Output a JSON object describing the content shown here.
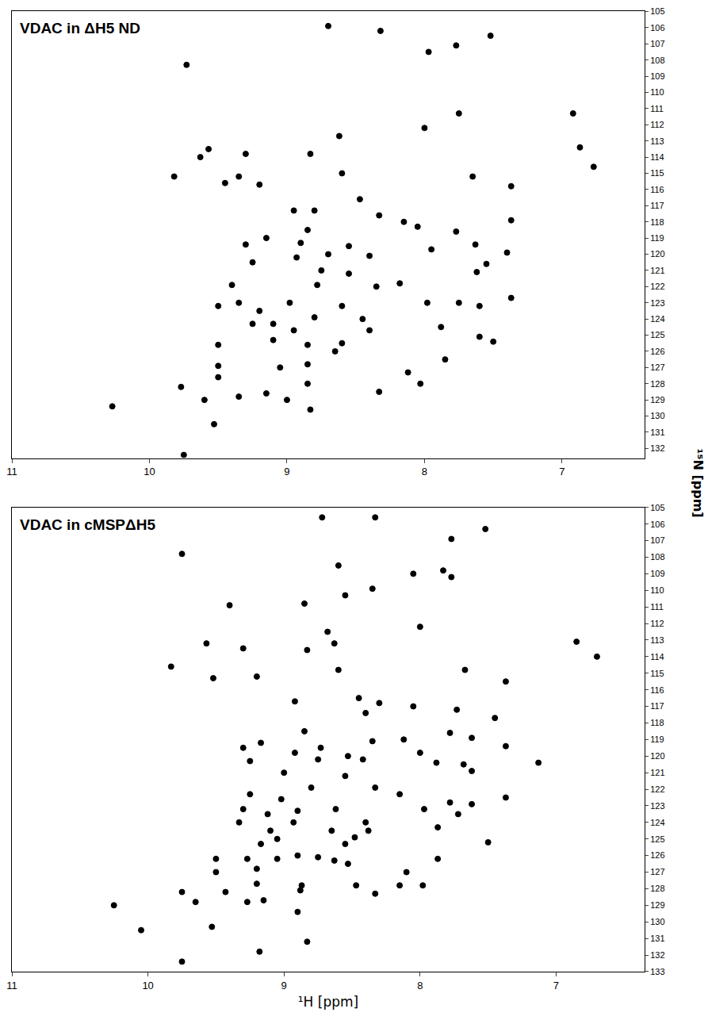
{
  "chart_data": [
    {
      "type": "scatter",
      "title": "VDAC in ΔH5 ND",
      "color": "#000000",
      "marker": "circle",
      "xlim": [
        11,
        6.4
      ],
      "xticks": [
        11,
        10,
        9,
        8,
        7
      ],
      "ylim": [
        105,
        132.6
      ],
      "yticks": [
        105,
        106,
        107,
        108,
        109,
        110,
        111,
        112,
        113,
        114,
        115,
        116,
        117,
        118,
        119,
        120,
        121,
        122,
        123,
        124,
        125,
        126,
        127,
        128,
        129,
        130,
        131,
        132
      ],
      "x": [
        8.7,
        8.32,
        7.52,
        7.77,
        9.73,
        7.97,
        9.57,
        9.63,
        9.3,
        8.83,
        8.62,
        9.45,
        9.2,
        8.6,
        7.65,
        7.37,
        9.82,
        9.35,
        6.77,
        6.87,
        6.92,
        7.75,
        8.0,
        8.95,
        8.8,
        8.47,
        8.33,
        8.15,
        8.05,
        7.77,
        7.37,
        9.15,
        8.85,
        8.9,
        9.3,
        8.93,
        8.7,
        8.55,
        8.4,
        7.95,
        7.63,
        7.55,
        7.62,
        7.4,
        9.25,
        8.75,
        8.55,
        8.78,
        8.35,
        8.18,
        7.98,
        7.75,
        7.6,
        7.37,
        8.98,
        9.2,
        9.25,
        9.1,
        8.95,
        8.8,
        8.6,
        8.45,
        8.4,
        9.1,
        8.85,
        8.6,
        7.88,
        7.6,
        7.5,
        9.5,
        9.5,
        9.5,
        9.5,
        9.05,
        8.85,
        8.65,
        7.85,
        8.12,
        8.03,
        8.33,
        9.15,
        8.85,
        9.0,
        9.77,
        9.6,
        9.35,
        10.27,
        9.53,
        8.83,
        9.75,
        9.4,
        9.35
      ],
      "y": [
        105.9,
        106.2,
        106.5,
        107.1,
        108.3,
        107.5,
        113.5,
        114.0,
        113.8,
        113.8,
        112.7,
        115.6,
        115.7,
        115.0,
        115.2,
        115.8,
        115.2,
        115.2,
        114.6,
        113.4,
        111.3,
        111.3,
        112.2,
        117.3,
        117.3,
        116.6,
        117.6,
        118.0,
        118.3,
        118.6,
        117.9,
        119.0,
        118.5,
        119.3,
        119.4,
        120.2,
        120.0,
        119.5,
        120.1,
        119.7,
        119.4,
        120.6,
        121.1,
        119.9,
        120.5,
        121.0,
        121.2,
        121.9,
        122.0,
        121.8,
        123.0,
        123.0,
        123.2,
        122.7,
        123.0,
        123.5,
        124.3,
        124.3,
        124.7,
        123.9,
        123.2,
        124.0,
        124.7,
        125.3,
        125.6,
        125.5,
        124.5,
        125.1,
        125.4,
        123.2,
        125.6,
        126.9,
        127.6,
        127.0,
        126.8,
        126.0,
        126.5,
        127.3,
        128.0,
        128.5,
        128.6,
        128.0,
        129.0,
        128.2,
        129.0,
        128.8,
        129.4,
        130.5,
        129.6,
        132.4,
        121.9,
        123.0
      ]
    },
    {
      "type": "scatter",
      "title": "VDAC in cMSPΔH5",
      "color": "#000000",
      "marker": "circle",
      "xlabel": "¹H [ppm]",
      "ylabel": "¹⁵N [ppm]",
      "xlim": [
        11,
        6.35
      ],
      "xticks": [
        11,
        10,
        9,
        8,
        7
      ],
      "ylim": [
        105,
        133
      ],
      "yticks": [
        105,
        106,
        107,
        108,
        109,
        110,
        111,
        112,
        113,
        114,
        115,
        116,
        117,
        118,
        119,
        120,
        121,
        122,
        123,
        124,
        125,
        126,
        127,
        128,
        129,
        130,
        131,
        132,
        133
      ],
      "x": [
        8.72,
        8.33,
        7.52,
        7.77,
        9.75,
        8.6,
        7.83,
        7.77,
        8.05,
        8.35,
        8.55,
        8.85,
        9.4,
        8.0,
        8.68,
        9.57,
        9.3,
        8.83,
        8.63,
        9.83,
        9.52,
        9.2,
        8.6,
        7.67,
        7.37,
        6.85,
        6.7,
        8.92,
        8.45,
        8.3,
        8.05,
        7.73,
        7.45,
        8.4,
        8.85,
        9.3,
        9.17,
        8.73,
        8.35,
        8.12,
        8.0,
        7.78,
        7.62,
        7.37,
        9.25,
        8.92,
        8.75,
        8.53,
        8.42,
        7.88,
        7.68,
        7.62,
        9.0,
        8.55,
        8.8,
        8.33,
        8.15,
        9.25,
        9.02,
        7.78,
        7.62,
        7.37,
        7.97,
        9.3,
        9.12,
        8.9,
        8.62,
        8.4,
        7.72,
        9.33,
        9.1,
        8.93,
        8.65,
        8.48,
        8.38,
        7.87,
        7.5,
        9.17,
        9.05,
        8.55,
        9.5,
        9.27,
        9.2,
        9.05,
        8.9,
        8.75,
        8.53,
        8.63,
        9.5,
        9.2,
        8.87,
        8.47,
        8.15,
        7.87,
        8.1,
        7.98,
        9.75,
        9.65,
        9.43,
        9.27,
        9.15,
        8.88,
        8.33,
        10.25,
        8.9,
        10.05,
        9.53,
        8.83,
        9.18,
        9.75,
        7.13
      ],
      "y": [
        105.6,
        105.6,
        106.3,
        106.9,
        107.8,
        108.5,
        108.8,
        109.2,
        109.0,
        109.9,
        110.3,
        110.8,
        110.9,
        112.2,
        112.5,
        113.2,
        113.5,
        113.6,
        113.2,
        114.6,
        115.3,
        115.2,
        114.8,
        114.8,
        115.5,
        113.1,
        114.0,
        116.7,
        116.5,
        116.8,
        117.0,
        117.2,
        117.7,
        117.4,
        118.5,
        119.5,
        119.2,
        119.5,
        119.1,
        119.0,
        119.8,
        118.6,
        118.9,
        119.4,
        120.3,
        119.8,
        120.2,
        120.0,
        120.2,
        120.4,
        120.5,
        120.9,
        121.0,
        121.2,
        121.9,
        121.9,
        122.3,
        122.3,
        122.6,
        122.8,
        122.9,
        122.5,
        123.2,
        123.2,
        123.5,
        123.3,
        123.2,
        124.0,
        123.5,
        124.0,
        124.5,
        124.0,
        124.5,
        124.9,
        124.5,
        124.3,
        125.2,
        125.3,
        125.0,
        125.3,
        126.2,
        126.2,
        126.8,
        126.2,
        126.0,
        126.1,
        126.5,
        126.3,
        127.0,
        127.7,
        127.8,
        127.8,
        127.8,
        126.2,
        127.0,
        127.8,
        128.2,
        128.8,
        128.2,
        128.8,
        128.7,
        128.1,
        128.3,
        129.0,
        129.4,
        130.5,
        130.3,
        131.2,
        131.8,
        132.4,
        120.4
      ]
    }
  ]
}
